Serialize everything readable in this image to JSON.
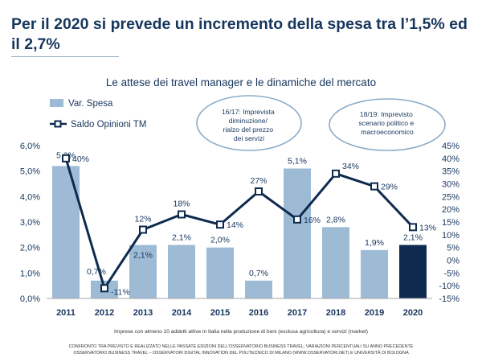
{
  "slide": {
    "title": "Per il 2020 si prevede un incremento della spesa tra l’1,5% ed il 2,7%",
    "footnote": "Imprese con almeno 10 addetti attive in Italia nella produzione di beni (esclusa agricoltura) e servizi (market)",
    "source_line1": "CONFRONTO TRA PREVISTO E REALIZZATO NELLE PASSATE EDIZIONI DELL’OSSERVATORIO BUSINESS TRAVEL; VARIAZIONI PERCENTUALI SU ANNO PRECEDENTE",
    "source_line2": "OSSERVATORIO BUSINESS TRAVEL – OSSERVATORI DIGITAL INNOVATION DEL POLITECNICO DI MILANO (WWW.OSSERVATORI.NET) E UNIVERSITÀ DI BOLOGNA"
  },
  "colors": {
    "title": "#17365d",
    "bar": "#9dbbd5",
    "bar_highlight": "#0e2a4f",
    "line": "#0e2a4f",
    "callout_border": "#8aabc9",
    "text": "#17365d"
  },
  "chart_data": {
    "type": "bar",
    "title": "Le attese dei travel manager e le dinamiche del mercato",
    "categories": [
      "2011",
      "2012",
      "2013",
      "2014",
      "2015",
      "2016",
      "2017",
      "2018",
      "2019",
      "2020"
    ],
    "series": [
      {
        "name": "Var. Spesa",
        "kind": "bar",
        "axis": "left",
        "values": [
          5.2,
          0.7,
          2.1,
          2.1,
          2.0,
          0.7,
          5.1,
          2.8,
          1.9,
          2.1
        ],
        "labels": [
          "5,2%",
          "0,7%",
          "2,1%",
          "2,1%",
          "2,0%",
          "0,7%",
          "5,1%",
          "2,8%",
          "1,9%",
          "2,1%"
        ],
        "highlight_category": "2020"
      },
      {
        "name": "Saldo Opinioni TM",
        "kind": "line",
        "axis": "right",
        "values": [
          40,
          -11,
          12,
          18,
          14,
          27,
          16,
          34,
          29,
          13
        ],
        "labels": [
          "40%",
          "-11%",
          "12%",
          "18%",
          "14%",
          "27%",
          "16%",
          "34%",
          "29%",
          "13%"
        ]
      }
    ],
    "y_left": {
      "range": [
        0,
        6
      ],
      "ticks": [
        0,
        1,
        2,
        3,
        4,
        5,
        6
      ],
      "tick_labels": [
        "0,0%",
        "1,0%",
        "2,0%",
        "3,0%",
        "4,0%",
        "5,0%",
        "6,0%"
      ]
    },
    "y_right": {
      "range": [
        -15,
        45
      ],
      "ticks": [
        -15,
        -10,
        -5,
        0,
        5,
        10,
        15,
        20,
        25,
        30,
        35,
        40,
        45
      ],
      "tick_labels": [
        "-15%",
        "-10%",
        "-5%",
        "0%",
        "5%",
        "10%",
        "15%",
        "20%",
        "25%",
        "30%",
        "35%",
        "40%",
        "45%"
      ]
    },
    "grid": false,
    "legend": "top-left",
    "annotations": [
      {
        "text_lines": [
          "16/17: Imprevista",
          "diminuzione/",
          "rialzo del prezzo",
          "dei servizi"
        ]
      },
      {
        "text_lines": [
          "18/19: Imprevisto",
          "scenario politico e",
          "macroeconomico"
        ]
      }
    ]
  }
}
